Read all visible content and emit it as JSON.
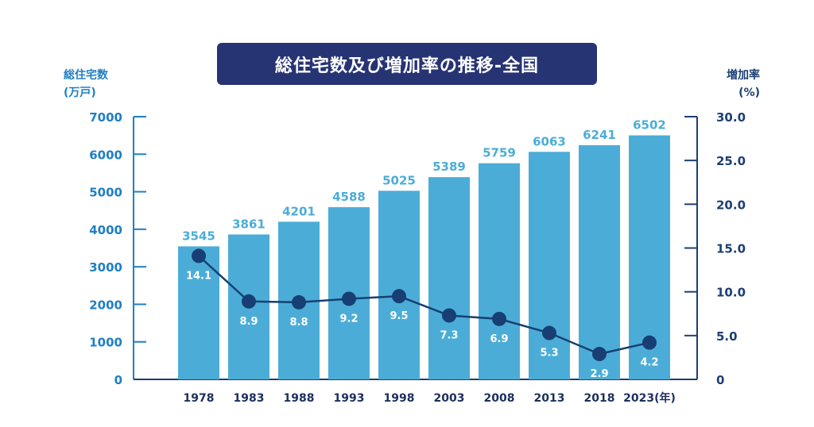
{
  "chart_data": {
    "type": "bar",
    "title": "総住宅数及び増加率の推移-全国",
    "categories": [
      "1978",
      "1983",
      "1988",
      "1993",
      "1998",
      "2003",
      "2008",
      "2013",
      "2018",
      "2023"
    ],
    "x_unit": "(年)",
    "ylabel": [
      "総住宅数",
      "(万戸)"
    ],
    "y2label": [
      "増加率",
      "(%)"
    ],
    "ylim": [
      0,
      7000
    ],
    "y_ticks": [
      "0",
      "1000",
      "2000",
      "3000",
      "4000",
      "5000",
      "6000",
      "7000"
    ],
    "y2lim": [
      0,
      30
    ],
    "y2_ticks": [
      "0",
      "5.0",
      "10.0",
      "15.0",
      "20.0",
      "25.0",
      "30.0"
    ],
    "series": [
      {
        "type": "bar",
        "axis": "left",
        "values": [
          3545,
          3861,
          4201,
          4588,
          5025,
          5389,
          5759,
          6063,
          6241,
          6502
        ]
      },
      {
        "type": "line",
        "axis": "right",
        "values": [
          14.1,
          8.9,
          8.8,
          9.2,
          9.5,
          7.3,
          6.9,
          5.3,
          2.9,
          4.2
        ]
      }
    ],
    "colors": {
      "bar": "#4badd7",
      "bar_label": "#4badd7",
      "line": "#173f73",
      "left_axis": "#1f7fc4",
      "right_axis": "#1c3f73",
      "title_bg": "#263473"
    },
    "grid": false
  }
}
